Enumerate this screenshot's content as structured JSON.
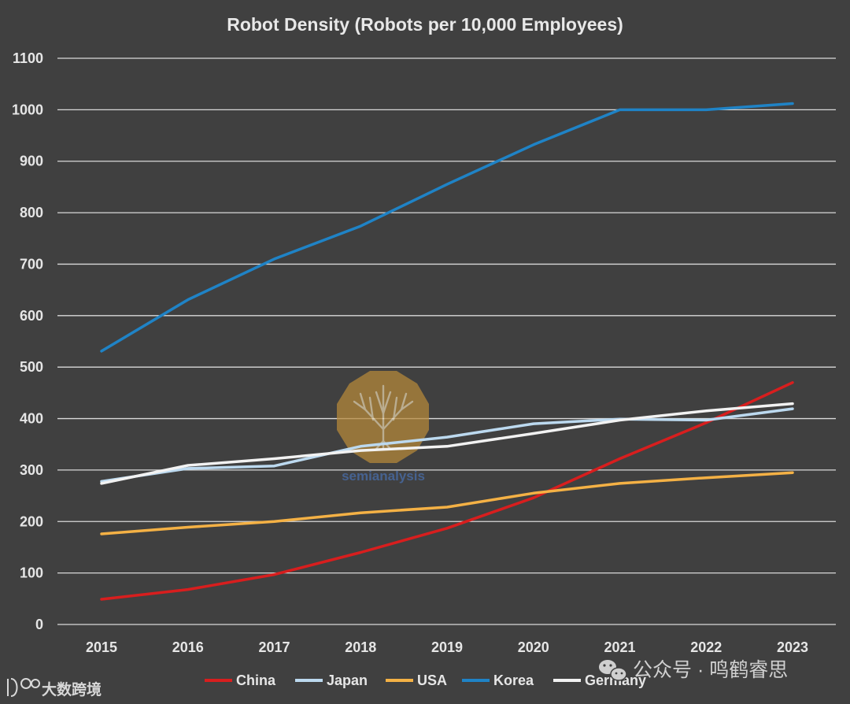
{
  "chart_data": {
    "type": "line",
    "title": "Robot Density (Robots per 10,000 Employees)",
    "xlabel": "",
    "ylabel": "",
    "categories": [
      "2015",
      "2016",
      "2017",
      "2018",
      "2019",
      "2020",
      "2021",
      "2022",
      "2023"
    ],
    "ylim": [
      0,
      1100
    ],
    "yticks": [
      0,
      100,
      200,
      300,
      400,
      500,
      600,
      700,
      800,
      900,
      1000,
      1100
    ],
    "grid": true,
    "legend_position": "bottom",
    "series": [
      {
        "name": "China",
        "color": "#d81e1e",
        "values": [
          49,
          68,
          97,
          140,
          187,
          246,
          322,
          392,
          470
        ]
      },
      {
        "name": "Japan",
        "color": "#bcd9ef",
        "values": [
          278,
          303,
          308,
          346,
          364,
          390,
          399,
          397,
          419
        ]
      },
      {
        "name": "USA",
        "color": "#f4b145",
        "values": [
          176,
          189,
          200,
          217,
          228,
          255,
          274,
          285,
          295
        ]
      },
      {
        "name": "Korea",
        "color": "#1f83c6",
        "values": [
          531,
          631,
          710,
          774,
          855,
          932,
          1000,
          1000,
          1012
        ]
      },
      {
        "name": "Germany",
        "color": "#f2f2f2",
        "values": [
          274,
          309,
          322,
          338,
          346,
          371,
          397,
          415,
          429
        ]
      }
    ]
  },
  "watermarks": {
    "center_text": "semianalysis",
    "wechat_text": "公众号 · 鸣鹤睿思",
    "brand_text": "大数跨境"
  },
  "colors": {
    "background": "#404040",
    "grid": "#d9d9d9",
    "text": "#e6e6e6"
  }
}
